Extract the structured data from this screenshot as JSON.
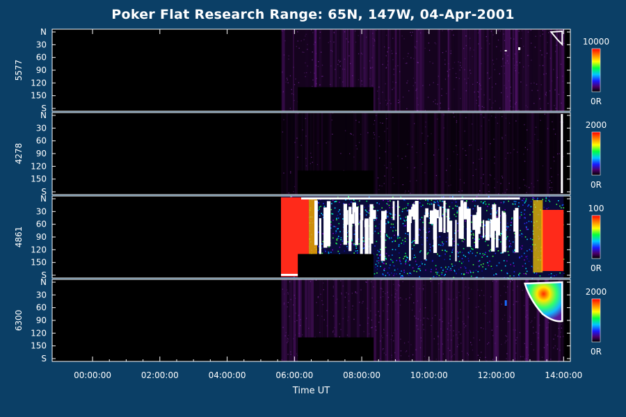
{
  "title": "Poker Flat Research Range: 65N, 147W, 04-Apr-2001",
  "chart_data": {
    "type": "heatmap",
    "title": "Poker Flat Research Range: 65N, 147W, 04-Apr-2001",
    "xlabel": "Time UT",
    "x_ticks": [
      "00:00:00",
      "02:00:00",
      "04:00:00",
      "06:00:00",
      "08:00:00",
      "10:00:00",
      "12:00:00",
      "14:00:00"
    ],
    "x_range_hours": [
      -1.2,
      14.2
    ],
    "y_ticks": [
      "N",
      "30",
      "60",
      "90",
      "120",
      "150",
      "S"
    ],
    "y_values": [
      0,
      30,
      60,
      90,
      120,
      150,
      180
    ],
    "panels": [
      {
        "ylabel": "5577",
        "colorbar_max": "10000",
        "colorbar_min": "0R",
        "data_start_hours": 5.6,
        "data_end_hours": 14.0,
        "description": "faint purple emission, brighter near end"
      },
      {
        "ylabel": "4278",
        "colorbar_max": "2000",
        "colorbar_min": "0R",
        "data_start_hours": 5.6,
        "data_end_hours": 14.0,
        "description": "very faint emission"
      },
      {
        "ylabel": "4861",
        "colorbar_max": "100",
        "colorbar_min": "0R",
        "data_start_hours": 5.6,
        "data_end_hours": 14.0,
        "description": "noisy multicolor, saturated red at start and end"
      },
      {
        "ylabel": "6300",
        "colorbar_max": "2000",
        "colorbar_min": "0R",
        "data_start_hours": 5.6,
        "data_end_hours": 14.0,
        "description": "purple emission with bright patch near 13-14h in north"
      }
    ],
    "masked_block_hours": [
      6.1,
      8.35
    ],
    "masked_block_y": [
      130,
      180
    ]
  }
}
